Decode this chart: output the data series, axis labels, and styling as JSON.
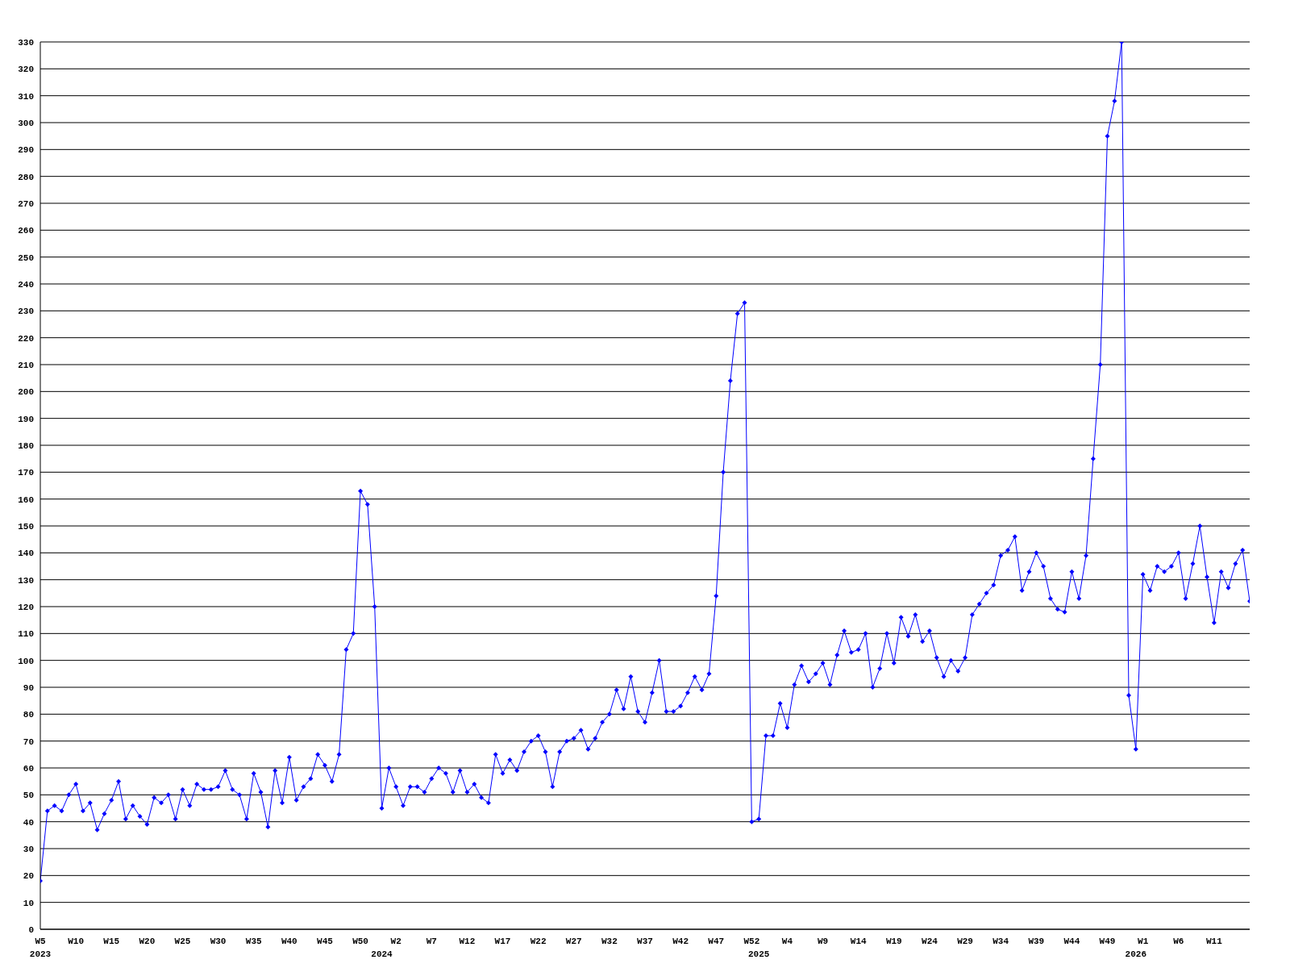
{
  "chart_data": {
    "type": "line",
    "color": "#0000ff",
    "marker": "diamond",
    "line_style": "solid",
    "grid": "y",
    "legend": false,
    "ylim": [
      0,
      330
    ],
    "yticks": [
      0,
      10,
      20,
      30,
      40,
      50,
      60,
      70,
      80,
      90,
      100,
      110,
      120,
      130,
      140,
      150,
      160,
      170,
      180,
      190,
      200,
      210,
      220,
      230,
      240,
      250,
      260,
      270,
      280,
      290,
      300,
      310,
      320,
      330
    ],
    "categories": [
      "W5\n2023",
      null,
      null,
      null,
      null,
      "W10",
      null,
      null,
      null,
      null,
      "W15",
      null,
      null,
      null,
      null,
      "W20",
      null,
      null,
      null,
      null,
      "W25",
      null,
      null,
      null,
      null,
      "W30",
      null,
      null,
      null,
      null,
      "W35",
      null,
      null,
      null,
      null,
      "W40",
      null,
      null,
      null,
      null,
      "W45",
      null,
      null,
      null,
      null,
      "W50",
      null,
      null,
      "\n2024",
      null,
      "W2",
      null,
      null,
      null,
      null,
      "W7",
      null,
      null,
      null,
      null,
      "W12",
      null,
      null,
      null,
      null,
      "W17",
      null,
      null,
      null,
      null,
      "W22",
      null,
      null,
      null,
      null,
      "W27",
      null,
      null,
      null,
      null,
      "W32",
      null,
      null,
      null,
      null,
      "W37",
      null,
      null,
      null,
      null,
      "W42",
      null,
      null,
      null,
      null,
      "W47",
      null,
      null,
      null,
      null,
      "W52",
      "\n2025",
      null,
      null,
      null,
      "W4",
      null,
      null,
      null,
      null,
      "W9",
      null,
      null,
      null,
      null,
      "W14",
      null,
      null,
      null,
      null,
      "W19",
      null,
      null,
      null,
      null,
      "W24",
      null,
      null,
      null,
      null,
      "W29",
      null,
      null,
      null,
      null,
      "W34",
      null,
      null,
      null,
      null,
      "W39",
      null,
      null,
      null,
      null,
      "W44",
      null,
      null,
      null,
      null,
      "W49",
      null,
      null,
      null,
      "\n2026",
      "W1",
      null,
      null,
      null,
      null,
      "W6",
      null,
      null,
      null,
      null,
      "W11",
      null,
      null,
      null,
      null,
      null
    ],
    "values": [
      18,
      44,
      46,
      44,
      50,
      54,
      44,
      47,
      37,
      43,
      48,
      55,
      41,
      46,
      42,
      39,
      49,
      47,
      50,
      41,
      52,
      46,
      54,
      52,
      52,
      53,
      59,
      52,
      50,
      41,
      58,
      51,
      38,
      59,
      47,
      64,
      48,
      53,
      56,
      65,
      61,
      55,
      65,
      104,
      110,
      163,
      158,
      120,
      45,
      60,
      53,
      46,
      53,
      53,
      51,
      56,
      60,
      58,
      51,
      59,
      51,
      54,
      49,
      47,
      65,
      58,
      63,
      59,
      66,
      70,
      72,
      66,
      53,
      66,
      70,
      71,
      74,
      67,
      71,
      77,
      80,
      89,
      82,
      94,
      81,
      77,
      88,
      100,
      81,
      81,
      83,
      88,
      94,
      89,
      95,
      124,
      170,
      204,
      229,
      233,
      40,
      41,
      72,
      72,
      84,
      75,
      91,
      98,
      92,
      95,
      99,
      91,
      102,
      111,
      103,
      104,
      110,
      90,
      97,
      110,
      99,
      116,
      109,
      117,
      107,
      111,
      101,
      94,
      100,
      96,
      101,
      117,
      121,
      125,
      128,
      139,
      141,
      146,
      126,
      133,
      140,
      135,
      123,
      119,
      118,
      133,
      123,
      139,
      175,
      210,
      295,
      308,
      330,
      87,
      67,
      132,
      126,
      135,
      133,
      135,
      140,
      123,
      136,
      150,
      131,
      114,
      133,
      127,
      136,
      141,
      122
    ]
  }
}
